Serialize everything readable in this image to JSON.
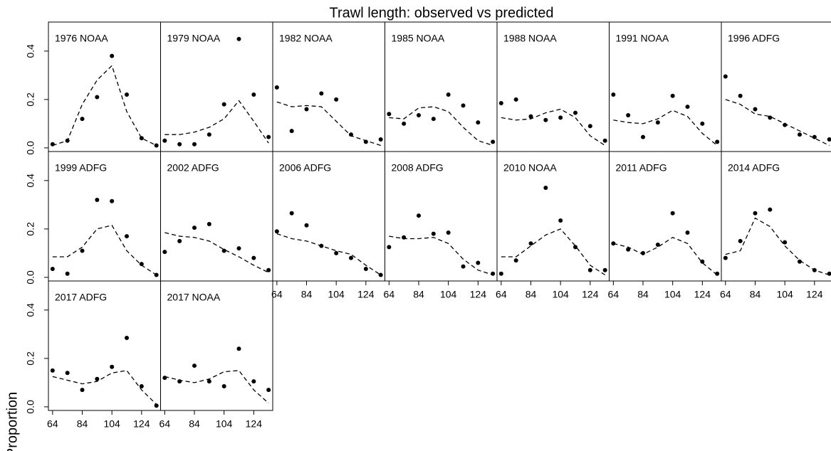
{
  "title": "Trawl length: observed vs predicted",
  "y_label": "Proportion",
  "xlim": [
    61.2,
    136.8
  ],
  "ylim": [
    -0.015,
    0.52
  ],
  "xticks": [
    64,
    84,
    104,
    124
  ],
  "yticks": [
    {
      "value": 0,
      "label": "0.0"
    },
    0.2,
    0.4
  ],
  "columns": 7,
  "chart_data": [
    {
      "type": "scatter",
      "title": "1976 NOAA",
      "x": [
        64,
        74,
        84,
        94,
        104,
        114,
        124,
        134
      ],
      "series": [
        {
          "marker": "point",
          "color": "#000000",
          "values": [
            0.015,
            0.03,
            0.12,
            0.21,
            0.38,
            0.22,
            0.04,
            0.01
          ]
        },
        {
          "line": "dashed",
          "color": "#000000",
          "values": [
            0.01,
            0.03,
            0.18,
            0.28,
            0.34,
            0.15,
            0.04,
            0.01
          ]
        }
      ]
    },
    {
      "type": "scatter",
      "title": "1979 NOAA",
      "x": [
        64,
        74,
        84,
        94,
        104,
        114,
        124,
        134
      ],
      "series": [
        {
          "marker": "point",
          "color": "#000000",
          "values": [
            0.03,
            0.015,
            0.015,
            0.055,
            0.18,
            0.45,
            0.22,
            0.045
          ]
        },
        {
          "line": "dashed",
          "color": "#000000",
          "values": [
            0.055,
            0.055,
            0.065,
            0.085,
            0.12,
            0.195,
            0.11,
            0.02
          ]
        }
      ]
    },
    {
      "type": "scatter",
      "title": "1982 NOAA",
      "x": [
        64,
        74,
        84,
        94,
        104,
        114,
        124,
        134
      ],
      "series": [
        {
          "marker": "point",
          "color": "#000000",
          "values": [
            0.25,
            0.07,
            0.16,
            0.225,
            0.2,
            0.055,
            0.025,
            0.035
          ]
        },
        {
          "line": "dashed",
          "color": "#000000",
          "values": [
            0.19,
            0.17,
            0.175,
            0.17,
            0.11,
            0.05,
            0.03,
            0.01
          ]
        }
      ]
    },
    {
      "type": "scatter",
      "title": "1985 NOAA",
      "x": [
        64,
        74,
        84,
        94,
        104,
        114,
        124,
        134
      ],
      "series": [
        {
          "marker": "point",
          "color": "#000000",
          "values": [
            0.14,
            0.1,
            0.135,
            0.12,
            0.22,
            0.175,
            0.105,
            0.025
          ]
        },
        {
          "line": "dashed",
          "color": "#000000",
          "values": [
            0.125,
            0.12,
            0.165,
            0.17,
            0.15,
            0.085,
            0.03,
            0.01
          ]
        }
      ]
    },
    {
      "type": "scatter",
      "title": "1988 NOAA",
      "x": [
        64,
        74,
        84,
        94,
        104,
        114,
        124,
        134
      ],
      "series": [
        {
          "marker": "point",
          "color": "#000000",
          "values": [
            0.185,
            0.2,
            0.13,
            0.115,
            0.125,
            0.145,
            0.09,
            0.03
          ]
        },
        {
          "line": "dashed",
          "color": "#000000",
          "values": [
            0.125,
            0.115,
            0.12,
            0.145,
            0.16,
            0.125,
            0.05,
            0.01
          ]
        }
      ]
    },
    {
      "type": "scatter",
      "title": "1991 NOAA",
      "x": [
        64,
        74,
        84,
        94,
        104,
        114,
        124,
        134
      ],
      "series": [
        {
          "marker": "point",
          "color": "#000000",
          "values": [
            0.22,
            0.135,
            0.045,
            0.105,
            0.215,
            0.17,
            0.1,
            0.025
          ]
        },
        {
          "line": "dashed",
          "color": "#000000",
          "values": [
            0.115,
            0.105,
            0.1,
            0.12,
            0.155,
            0.13,
            0.06,
            0.01
          ]
        }
      ]
    },
    {
      "type": "scatter",
      "title": "1996 ADFG",
      "x": [
        64,
        74,
        84,
        94,
        104,
        114,
        124,
        134
      ],
      "series": [
        {
          "marker": "point",
          "color": "#000000",
          "values": [
            0.295,
            0.215,
            0.16,
            0.125,
            0.095,
            0.055,
            0.045,
            0.035
          ]
        },
        {
          "line": "dashed",
          "color": "#000000",
          "values": [
            0.2,
            0.18,
            0.14,
            0.13,
            0.1,
            0.07,
            0.04,
            0.01
          ]
        }
      ]
    },
    {
      "type": "scatter",
      "title": "1999 ADFG",
      "x": [
        64,
        74,
        84,
        94,
        104,
        114,
        124,
        134
      ],
      "series": [
        {
          "marker": "point",
          "color": "#000000",
          "values": [
            0.035,
            0.015,
            0.11,
            0.32,
            0.315,
            0.17,
            0.055,
            0.01
          ]
        },
        {
          "line": "dashed",
          "color": "#000000",
          "values": [
            0.085,
            0.085,
            0.125,
            0.2,
            0.215,
            0.11,
            0.05,
            0.01
          ]
        }
      ]
    },
    {
      "type": "scatter",
      "title": "2002 ADFG",
      "x": [
        64,
        74,
        84,
        94,
        104,
        114,
        124,
        134
      ],
      "series": [
        {
          "marker": "point",
          "color": "#000000",
          "values": [
            0.105,
            0.15,
            0.205,
            0.22,
            0.11,
            0.12,
            0.08,
            0.03
          ]
        },
        {
          "line": "dashed",
          "color": "#000000",
          "values": [
            0.185,
            0.17,
            0.165,
            0.15,
            0.115,
            0.085,
            0.05,
            0.02
          ]
        }
      ]
    },
    {
      "type": "scatter",
      "title": "2006 ADFG",
      "x": [
        64,
        74,
        84,
        94,
        104,
        114,
        124,
        134
      ],
      "series": [
        {
          "marker": "point",
          "color": "#000000",
          "values": [
            0.19,
            0.265,
            0.215,
            0.13,
            0.1,
            0.08,
            0.035,
            0.01
          ]
        },
        {
          "line": "dashed",
          "color": "#000000",
          "values": [
            0.18,
            0.16,
            0.15,
            0.13,
            0.11,
            0.095,
            0.05,
            0.01
          ]
        }
      ]
    },
    {
      "type": "scatter",
      "title": "2008 ADFG",
      "x": [
        64,
        74,
        84,
        94,
        104,
        114,
        124,
        134
      ],
      "series": [
        {
          "marker": "point",
          "color": "#000000",
          "values": [
            0.125,
            0.165,
            0.255,
            0.18,
            0.185,
            0.045,
            0.06,
            0.015
          ]
        },
        {
          "line": "dashed",
          "color": "#000000",
          "values": [
            0.17,
            0.16,
            0.16,
            0.165,
            0.14,
            0.075,
            0.03,
            0.01
          ]
        }
      ]
    },
    {
      "type": "scatter",
      "title": "2010 NOAA",
      "x": [
        64,
        74,
        84,
        94,
        104,
        114,
        124,
        134
      ],
      "series": [
        {
          "marker": "point",
          "color": "#000000",
          "values": [
            0.015,
            0.07,
            0.14,
            0.37,
            0.235,
            0.125,
            0.03,
            0.03
          ]
        },
        {
          "line": "dashed",
          "color": "#000000",
          "values": [
            0.085,
            0.085,
            0.13,
            0.175,
            0.2,
            0.13,
            0.05,
            0.01
          ]
        }
      ]
    },
    {
      "type": "scatter",
      "title": "2011 ADFG",
      "x": [
        64,
        74,
        84,
        94,
        104,
        114,
        124,
        134
      ],
      "series": [
        {
          "marker": "point",
          "color": "#000000",
          "values": [
            0.14,
            0.115,
            0.1,
            0.135,
            0.265,
            0.185,
            0.065,
            0.015
          ]
        },
        {
          "line": "dashed",
          "color": "#000000",
          "values": [
            0.14,
            0.125,
            0.095,
            0.125,
            0.165,
            0.14,
            0.06,
            0.01
          ]
        }
      ]
    },
    {
      "type": "scatter",
      "title": "2014 ADFG",
      "x": [
        64,
        74,
        84,
        94,
        104,
        114,
        124,
        134
      ],
      "series": [
        {
          "marker": "point",
          "color": "#000000",
          "values": [
            0.08,
            0.15,
            0.265,
            0.28,
            0.145,
            0.065,
            0.03,
            0.015
          ]
        },
        {
          "line": "dashed",
          "color": "#000000",
          "values": [
            0.095,
            0.11,
            0.245,
            0.21,
            0.13,
            0.07,
            0.03,
            0.01
          ]
        }
      ]
    },
    {
      "type": "scatter",
      "title": "2017 ADFG",
      "x": [
        64,
        74,
        84,
        94,
        104,
        114,
        124,
        134
      ],
      "series": [
        {
          "marker": "point",
          "color": "#000000",
          "values": [
            0.15,
            0.14,
            0.07,
            0.115,
            0.165,
            0.285,
            0.085,
            0.005
          ]
        },
        {
          "line": "dashed",
          "color": "#000000",
          "values": [
            0.125,
            0.11,
            0.095,
            0.105,
            0.14,
            0.15,
            0.07,
            0.01
          ]
        }
      ]
    },
    {
      "type": "scatter",
      "title": "2017 NOAA",
      "x": [
        64,
        74,
        84,
        94,
        104,
        114,
        124,
        134
      ],
      "series": [
        {
          "marker": "point",
          "color": "#000000",
          "values": [
            0.12,
            0.105,
            0.17,
            0.105,
            0.085,
            0.24,
            0.105,
            0.07
          ]
        },
        {
          "line": "dashed",
          "color": "#000000",
          "values": [
            0.125,
            0.11,
            0.1,
            0.115,
            0.145,
            0.15,
            0.07,
            0.015
          ]
        }
      ]
    }
  ]
}
